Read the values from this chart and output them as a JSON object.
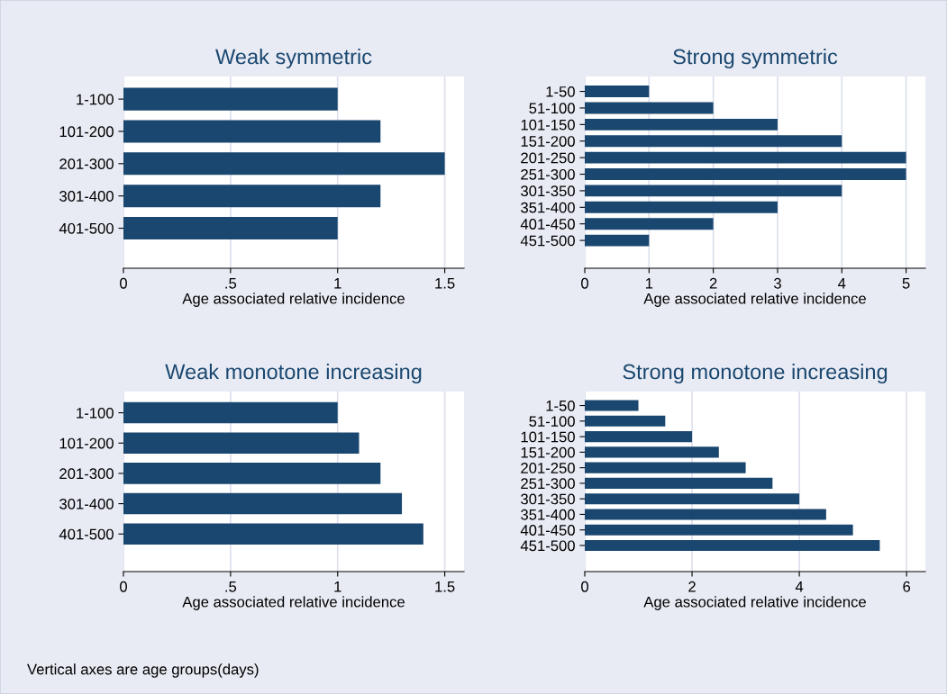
{
  "chart_data": [
    {
      "type": "bar",
      "orientation": "horizontal",
      "title": "Weak symmetric",
      "xlabel": "Age associated relative incidence",
      "categories": [
        "1-100",
        "101-200",
        "201-300",
        "301-400",
        "401-500"
      ],
      "values": [
        1,
        1.2,
        1.5,
        1.2,
        1
      ],
      "color": "#1a476f",
      "xlim": [
        0,
        1.59
      ],
      "xticks": [
        0,
        {
          "value": 0.5,
          "label": ".5"
        },
        1,
        1.5
      ],
      "grid": "x",
      "legend": false
    },
    {
      "type": "bar",
      "orientation": "horizontal",
      "title": "Strong symmetric",
      "xlabel": "Age associated relative incidence",
      "categories": [
        "1-50",
        "51-100",
        "101-150",
        "151-200",
        "201-250",
        "251-300",
        "301-350",
        "351-400",
        "401-450",
        "451-500"
      ],
      "values": [
        1,
        2,
        3,
        4,
        5,
        5,
        4,
        3,
        2,
        1
      ],
      "color": "#1a476f",
      "xlim": [
        0,
        5.3
      ],
      "xticks": [
        0,
        1,
        2,
        3,
        4,
        5
      ],
      "grid": "x",
      "legend": false
    },
    {
      "type": "bar",
      "orientation": "horizontal",
      "title": "Weak monotone increasing",
      "xlabel": "Age associated relative incidence",
      "categories": [
        "1-100",
        "101-200",
        "201-300",
        "301-400",
        "401-500"
      ],
      "values": [
        1,
        1.1,
        1.2,
        1.3,
        1.4
      ],
      "color": "#1a476f",
      "xlim": [
        0,
        1.59
      ],
      "xticks": [
        0,
        {
          "value": 0.5,
          "label": ".5"
        },
        1,
        1.5
      ],
      "grid": "x",
      "legend": false
    },
    {
      "type": "bar",
      "orientation": "horizontal",
      "title": "Strong monotone increasing",
      "xlabel": "Age associated relative incidence",
      "categories": [
        "1-50",
        "51-100",
        "101-150",
        "151-200",
        "201-250",
        "251-300",
        "301-350",
        "351-400",
        "401-450",
        "451-500"
      ],
      "values": [
        1,
        1.5,
        2,
        2.5,
        3,
        3.5,
        4,
        4.5,
        5,
        5.5
      ],
      "color": "#1a476f",
      "xlim": [
        0,
        6.35
      ],
      "xticks": [
        0,
        2,
        4,
        6
      ],
      "grid": "x",
      "legend": false,
      "annotations": [
        "Vertical axes are age groups(days)"
      ]
    }
  ]
}
